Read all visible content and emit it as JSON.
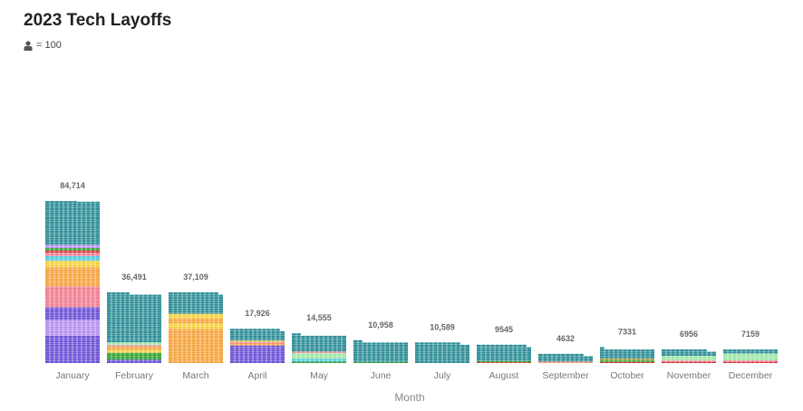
{
  "chart_data": {
    "type": "bar",
    "title": "2023 Tech Layoffs",
    "legend_unit": "= 100",
    "xlabel": "Month",
    "categories": [
      "January",
      "February",
      "March",
      "April",
      "May",
      "June",
      "July",
      "August",
      "September",
      "October",
      "November",
      "December"
    ],
    "values": [
      84714,
      36491,
      37109,
      17926,
      14555,
      10958,
      10589,
      9545,
      4632,
      7331,
      6956,
      7159
    ],
    "value_labels": [
      "84,714",
      "36,491",
      "37,109",
      "17,926",
      "14,555",
      "10,958",
      "10,589",
      "9545",
      "4632",
      "7331",
      "6956",
      "7159"
    ],
    "icon": "person-icon",
    "colors": {
      "teal": "#2a8c95",
      "purple": "#6a4fd6",
      "orange": "#f5a23a",
      "pink": "#f07a8e",
      "yellow": "#f5cf3b",
      "green": "#2ca02c",
      "lightgreen": "#9ee6a8",
      "red": "#d62728",
      "cyan": "#4ec9e0",
      "lavender": "#b38ef0"
    }
  }
}
